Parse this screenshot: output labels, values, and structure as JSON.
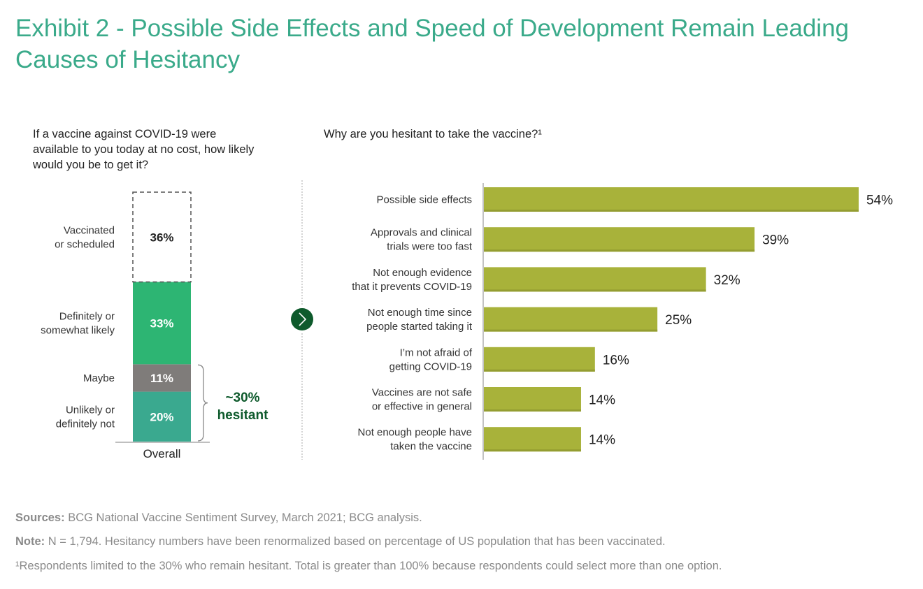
{
  "title": "Exhibit 2 - Possible Side Effects and Speed of Development Remain Leading Causes of Hesitancy",
  "colors": {
    "title": "#3aaa8a",
    "likely": "#2db573",
    "maybe": "#7f7c7a",
    "unlikely": "#3aa98f",
    "bar": "#a8b23a",
    "bar_shadow": "#949d31",
    "accent_dark": "#0e5a2c",
    "footer": "#8a8a8a"
  },
  "chart_data": [
    {
      "type": "bar",
      "subtype": "stacked-column",
      "title": "If a vaccine against COVID-19 were available to you today at no cost, how likely would you be to get it?",
      "categories": [
        "Overall"
      ],
      "series": [
        {
          "name": "Unlikely or definitely not",
          "values": [
            20
          ],
          "label": "20%",
          "style": "solid"
        },
        {
          "name": "Maybe",
          "values": [
            11
          ],
          "label": "11%",
          "style": "solid"
        },
        {
          "name": "Definitely or somewhat likely",
          "values": [
            33
          ],
          "label": "33%",
          "style": "solid"
        },
        {
          "name": "Vaccinated or scheduled",
          "values": [
            36
          ],
          "label": "36%",
          "style": "dashed-outline"
        }
      ],
      "annotation": {
        "text_line1": "~30%",
        "text_line2": "hesitant",
        "spans": [
          "Maybe",
          "Unlikely or definitely not"
        ]
      },
      "ylim": [
        0,
        100
      ],
      "xlabel": "",
      "ylabel": ""
    },
    {
      "type": "bar",
      "subtype": "horizontal",
      "title": "Why are you hesitant to take the vaccine?¹",
      "categories": [
        [
          "Possible side effects"
        ],
        [
          "Approvals and clinical",
          "trials were too fast"
        ],
        [
          "Not enough evidence",
          "that it prevents COVID-19"
        ],
        [
          "Not enough time since",
          "people started taking it"
        ],
        [
          "I’m not afraid of",
          "getting COVID-19"
        ],
        [
          "Vaccines are not safe",
          "or effective in general"
        ],
        [
          "Not enough people have",
          "taken the vaccine"
        ]
      ],
      "values": [
        54,
        39,
        32,
        25,
        16,
        14,
        14
      ],
      "labels": [
        "54%",
        "39%",
        "32%",
        "25%",
        "16%",
        "14%",
        "14%"
      ],
      "xlim": [
        0,
        54
      ],
      "xlabel": "",
      "ylabel": ""
    }
  ],
  "footer": {
    "sources_label": "Sources:",
    "sources_text": " BCG National Vaccine Sentiment Survey, March 2021; BCG analysis.",
    "note_label": "Note:",
    "note_text": " N = 1,794. Hesitancy numbers have been renormalized based on percentage of US population that has been vaccinated.",
    "footnote": "¹Respondents limited to the 30% who remain hesitant. Total is greater than 100% because respondents could select more than one option."
  }
}
